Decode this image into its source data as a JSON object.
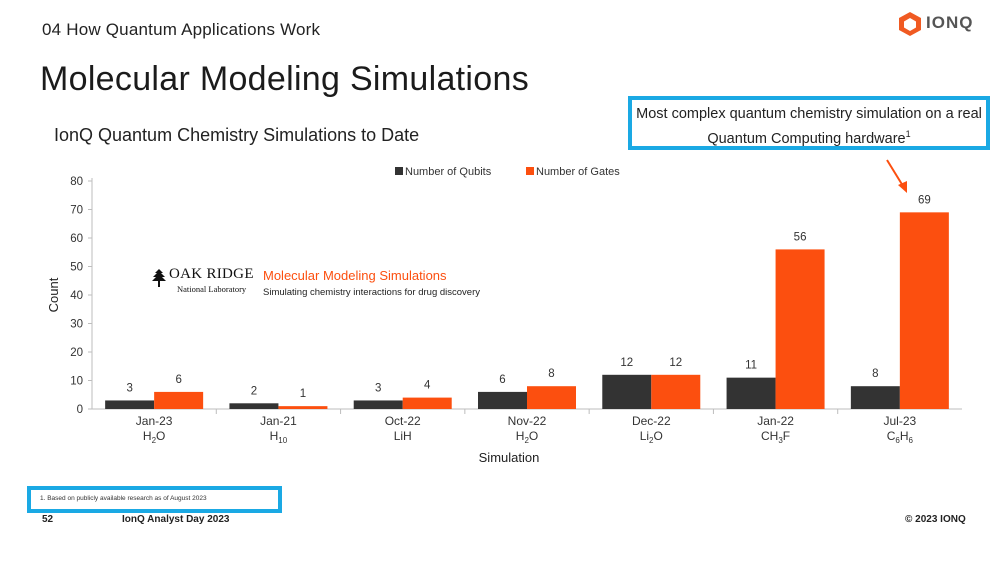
{
  "header": {
    "section": "04 How Quantum Applications Work",
    "title": "Molecular Modeling Simulations",
    "subtitle": "IonQ Quantum Chemistry Simulations to Date",
    "logo_text": "IONQ",
    "logo_icon": "ionq-hexagon-icon",
    "logo_color": "#f05a22"
  },
  "callout": {
    "text": "Most complex quantum chemistry simulation on a real Quantum Computing hardware",
    "footnote_mark": "1",
    "border_color": "#1aa9e4"
  },
  "inset": {
    "org_name": "OAK RIDGE",
    "org_sub": "National Laboratory",
    "org_icon": "oak-tree-icon",
    "title": "Molecular Modeling Simulations",
    "subtitle": "Simulating chemistry interactions for drug discovery"
  },
  "footer": {
    "footnote": "1. Based on publicly available research as of August 2023",
    "page_number": "52",
    "event": "IonQ Analyst Day 2023",
    "copyright": "© 2023 IONQ"
  },
  "chart_data": {
    "type": "bar",
    "title": "IonQ Quantum Chemistry Simulations to Date",
    "xlabel": "Simulation",
    "ylabel": "Count",
    "ylim": [
      0,
      80
    ],
    "yticks": [
      0,
      10,
      20,
      30,
      40,
      50,
      60,
      70,
      80
    ],
    "grid": false,
    "legend_position": "top-center",
    "categories": [
      {
        "date": "Jan-23",
        "molecule": "H",
        "subscript": "2",
        "suffix": "O",
        "sub2": ""
      },
      {
        "date": "Jan-21",
        "molecule": "H",
        "subscript": "10",
        "suffix": "",
        "sub2": ""
      },
      {
        "date": "Oct-22",
        "molecule": "LiH",
        "subscript": "",
        "suffix": "",
        "sub2": ""
      },
      {
        "date": "Nov-22",
        "molecule": "H",
        "subscript": "2",
        "suffix": "O",
        "sub2": ""
      },
      {
        "date": "Dec-22",
        "molecule": "Li",
        "subscript": "2",
        "suffix": "O",
        "sub2": ""
      },
      {
        "date": "Jan-22",
        "molecule": "CH",
        "subscript": "3",
        "suffix": "F",
        "sub2": ""
      },
      {
        "date": "Jul-23",
        "molecule": "C",
        "subscript": "6",
        "suffix": "H",
        "sub2": "6"
      }
    ],
    "series": [
      {
        "name": "Number of Qubits",
        "color": "#333333",
        "values": [
          3,
          2,
          3,
          6,
          12,
          11,
          8
        ]
      },
      {
        "name": "Number of Gates",
        "color": "#fc4f0f",
        "values": [
          6,
          1,
          4,
          8,
          12,
          56,
          69
        ]
      }
    ],
    "arrow_color": "#fc4f0f"
  }
}
